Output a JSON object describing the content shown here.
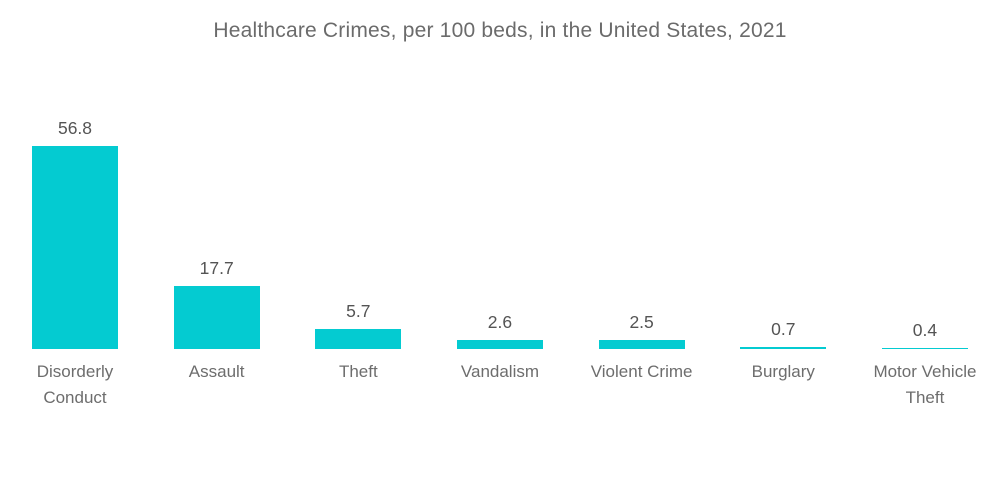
{
  "chart_data": {
    "type": "bar",
    "title": "Healthcare Crimes, per 100 beds, in the United States, 2021",
    "categories": [
      "Disorderly Conduct",
      "Assault",
      "Theft",
      "Vandalism",
      "Violent Crime",
      "Burglary",
      "Motor Vehicle Theft"
    ],
    "values": [
      56.8,
      17.7,
      5.7,
      2.6,
      2.5,
      0.7,
      0.4
    ],
    "value_labels": [
      "56.8",
      "17.7",
      "5.7",
      "2.6",
      "2.5",
      "0.7",
      "0.4"
    ],
    "xlabel": "",
    "ylabel": "",
    "ylim": [
      0,
      56.8
    ],
    "grid": false,
    "axes_visible": false,
    "legend": "none",
    "data_labels_position": "above-bar",
    "colors": {
      "bar": "#04cbd1",
      "title_text": "#6b6b6b",
      "category_text": "#6d6d6d",
      "value_text": "#545454",
      "background": "#ffffff"
    }
  }
}
